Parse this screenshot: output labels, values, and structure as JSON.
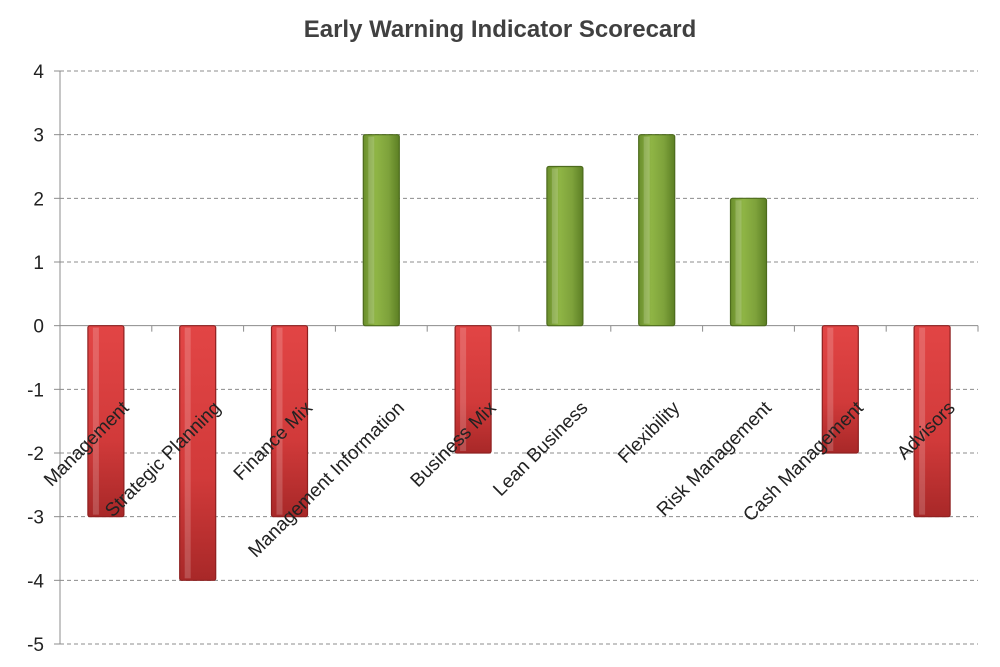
{
  "chart_data": {
    "type": "bar",
    "title": "Early Warning Indicator Scorecard",
    "xlabel": "",
    "ylabel": "",
    "ylim": [
      -5,
      4
    ],
    "yticks": [
      4,
      3,
      2,
      1,
      0,
      -1,
      -2,
      -3,
      -4,
      -5
    ],
    "grid": true,
    "legend": "none",
    "categories": [
      "Management",
      "Strategic Planning",
      "Finance Mix",
      "Management Information",
      "Business Mix",
      "Lean Business",
      "Flexibility",
      "Risk Management",
      "Cash Management",
      "Advisors"
    ],
    "values": [
      -3,
      -4,
      -3,
      3,
      -2,
      2.5,
      3,
      2,
      -2,
      -3
    ],
    "colors": {
      "positive": "#7fa33c",
      "negative": "#d93b3b"
    }
  }
}
